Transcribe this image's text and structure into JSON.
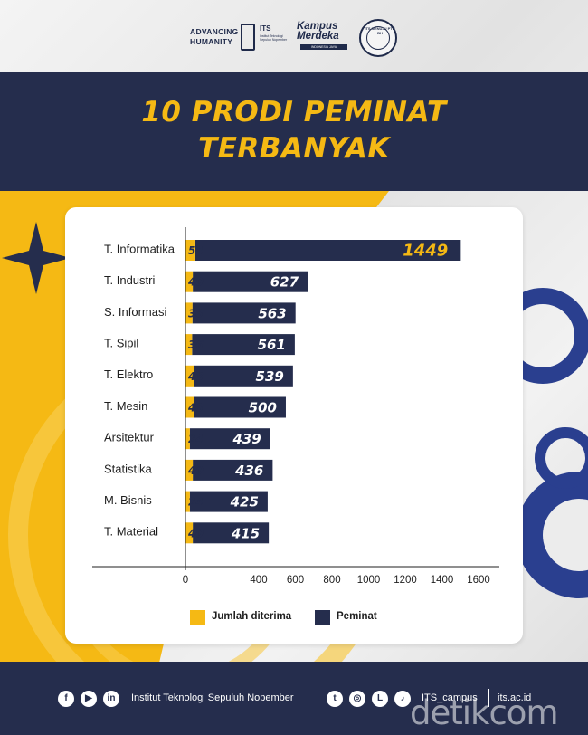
{
  "header": {
    "tagline": "ADVANCING HUMANITY",
    "its_logo_text": "ITS",
    "its_logo_sub": "Institut Teknologi Sepuluh Nopember",
    "kampus_logo_text": "Kampus Merdeka",
    "kampus_logo_sub": "INDONESIA JAYA",
    "seal_text": "ITS MENUJU PTN BH"
  },
  "title": {
    "line1": "10 PRODI PEMINAT",
    "line2": "TERBANYAK"
  },
  "colors": {
    "navy": "#252d4d",
    "yellow": "#f5b914"
  },
  "chart_data": {
    "type": "bar",
    "orientation": "horizontal",
    "stacked": true,
    "categories": [
      "T. Informatika",
      "T. Industri",
      "S. Informasi",
      "T. Sipil",
      "T. Elektro",
      "T. Mesin",
      "Arsitektur",
      "Statistika",
      "M. Bisnis",
      "T. Material"
    ],
    "series": [
      {
        "name": "Jumlah diterima",
        "color": "#f5b914",
        "values": [
          54,
          40,
          38,
          36,
          48,
          48,
          24,
          40,
          24,
          40
        ],
        "value_labels": [
          "54",
          "40",
          "38",
          "36",
          "48",
          "48",
          "24",
          "40",
          "24",
          "40"
        ]
      },
      {
        "name": "Peminat",
        "color": "#252d4d",
        "values": [
          1449,
          627,
          563,
          561,
          539,
          500,
          439,
          436,
          425,
          415
        ],
        "value_labels": [
          "1449",
          "627",
          "563",
          "561",
          "539",
          "500",
          "439",
          "436",
          "425",
          "415"
        ]
      }
    ],
    "x_ticks": [
      "0",
      "400",
      "600",
      "800",
      "1000",
      "1200",
      "1400",
      "1600"
    ],
    "x_tick_values": [
      0,
      400,
      600,
      800,
      1000,
      1200,
      1400,
      1600
    ],
    "xlim": [
      0,
      1600
    ],
    "grid": false,
    "legend_position": "bottom"
  },
  "legend": {
    "received": "Jumlah diterima",
    "applicants": "Peminat"
  },
  "footer": {
    "institution": "Institut Teknologi Sepuluh Nopember",
    "handle": "ITS_campus",
    "website": "its.ac.id",
    "watermark": "detikcom",
    "icons": [
      "facebook-icon",
      "youtube-icon",
      "linkedin-icon",
      "twitter-icon",
      "instagram-icon",
      "line-icon",
      "tiktok-icon"
    ]
  }
}
